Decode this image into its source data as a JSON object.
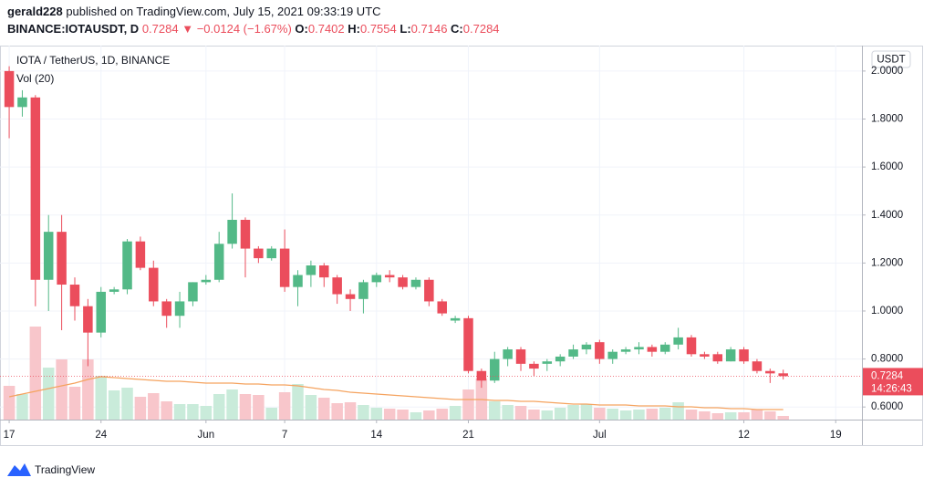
{
  "header": {
    "author": "gerald228",
    "published": "published on TradingView.com, July 15, 2021 09:33:19 UTC",
    "symbol": "BINANCE:IOTAUSDT, D",
    "direction": "▼",
    "change": "−0.0124 (−1.67%)",
    "open_label": "O:",
    "high_label": "H:",
    "low_label": "L:",
    "close_label": "C:"
  },
  "chart_data": {
    "type": "candlestick",
    "title": "IOTA / TetherUS, 1D, BINANCE",
    "currency": "USDT",
    "countdown": "14:26:43",
    "open": [
      2.0,
      1.85,
      1.89,
      1.13,
      1.33,
      1.11,
      1.02,
      0.91,
      1.08,
      1.09,
      1.29,
      1.18,
      1.04,
      0.98,
      1.04,
      1.12,
      1.13,
      1.28,
      1.38,
      1.26,
      1.22,
      1.26,
      1.1,
      1.15,
      1.19,
      1.14,
      1.07,
      1.05,
      1.12,
      1.15,
      1.14,
      1.1,
      1.13,
      1.04,
      0.96,
      0.97,
      0.75,
      0.71,
      0.8,
      0.84,
      0.78,
      0.78,
      0.79,
      0.81,
      0.84,
      0.87,
      0.8,
      0.83,
      0.84,
      0.85,
      0.83,
      0.86,
      0.89,
      0.82,
      0.82,
      0.79,
      0.84,
      0.79,
      0.75,
      0.7402
    ],
    "high": [
      2.02,
      1.92,
      1.9,
      1.4,
      1.4,
      1.14,
      1.05,
      1.1,
      1.1,
      1.3,
      1.31,
      1.21,
      1.05,
      1.08,
      1.12,
      1.15,
      1.33,
      1.49,
      1.39,
      1.27,
      1.27,
      1.34,
      1.17,
      1.21,
      1.2,
      1.15,
      1.09,
      1.13,
      1.16,
      1.17,
      1.15,
      1.14,
      1.14,
      1.05,
      0.98,
      0.98,
      0.76,
      0.83,
      0.85,
      0.85,
      0.79,
      0.8,
      0.82,
      0.86,
      0.87,
      0.88,
      0.84,
      0.85,
      0.87,
      0.86,
      0.87,
      0.93,
      0.9,
      0.83,
      0.83,
      0.85,
      0.85,
      0.8,
      0.76,
      0.7554
    ],
    "low": [
      1.72,
      1.81,
      1.02,
      1.0,
      0.92,
      0.96,
      0.77,
      0.89,
      1.07,
      1.07,
      1.17,
      1.02,
      0.93,
      0.93,
      1.02,
      1.11,
      1.12,
      1.26,
      1.14,
      1.2,
      1.21,
      1.08,
      1.02,
      1.1,
      1.1,
      1.03,
      1.0,
      0.99,
      1.1,
      1.12,
      1.09,
      1.09,
      1.02,
      0.98,
      0.95,
      0.74,
      0.68,
      0.7,
      0.77,
      0.75,
      0.73,
      0.75,
      0.77,
      0.8,
      0.82,
      0.78,
      0.78,
      0.82,
      0.82,
      0.81,
      0.82,
      0.84,
      0.81,
      0.8,
      0.78,
      0.79,
      0.78,
      0.74,
      0.7,
      0.7146
    ],
    "close": [
      1.85,
      1.89,
      1.13,
      1.33,
      1.11,
      1.02,
      0.91,
      1.08,
      1.09,
      1.29,
      1.18,
      1.04,
      0.98,
      1.04,
      1.12,
      1.13,
      1.28,
      1.38,
      1.26,
      1.22,
      1.26,
      1.1,
      1.15,
      1.19,
      1.14,
      1.07,
      1.05,
      1.12,
      1.15,
      1.14,
      1.1,
      1.13,
      1.04,
      0.99,
      0.97,
      0.75,
      0.71,
      0.8,
      0.84,
      0.78,
      0.76,
      0.79,
      0.81,
      0.84,
      0.86,
      0.8,
      0.83,
      0.84,
      0.85,
      0.83,
      0.86,
      0.89,
      0.82,
      0.81,
      0.79,
      0.84,
      0.79,
      0.75,
      0.74,
      0.7284
    ],
    "volume": {
      "name": "Vol (20)",
      "values": [
        37,
        28,
        102,
        57,
        66,
        36,
        66,
        48,
        32,
        35,
        25,
        29,
        20,
        17,
        17,
        15,
        28,
        33,
        28,
        27,
        13,
        30,
        39,
        27,
        24,
        18,
        19,
        16,
        13,
        12,
        11,
        8,
        10,
        12,
        15,
        33,
        45,
        20,
        16,
        15,
        11,
        10,
        13,
        16,
        17,
        13,
        12,
        10,
        11,
        12,
        13,
        19,
        11,
        9,
        7,
        8,
        8,
        11,
        9,
        4
      ],
      "ma": [
        25,
        28,
        31,
        34,
        37,
        40,
        44,
        47,
        46,
        45,
        44,
        43,
        42,
        42,
        41,
        40,
        40,
        40,
        39,
        39,
        38,
        38,
        37,
        35,
        33,
        32,
        30,
        29,
        28,
        27,
        26,
        25,
        24,
        23,
        22,
        22,
        22,
        21,
        21,
        20,
        20,
        19,
        18,
        17,
        17,
        16,
        16,
        16,
        15,
        15,
        15,
        14,
        14,
        13,
        13,
        12,
        12,
        11,
        11,
        11
      ],
      "up_color": "#c9ebda",
      "down_color": "#f8c6cb",
      "ma_color": "#f5a35f"
    },
    "up_color": "#53b987",
    "down_color": "#eb4d5c",
    "ylim": [
      0.5475,
      2.106
    ],
    "yticks": [
      {
        "value": 0.6,
        "label": "0.6000"
      },
      {
        "value": 0.8,
        "label": "0.8000"
      },
      {
        "value": 1.0,
        "label": "1.0000"
      },
      {
        "value": 1.2,
        "label": "1.2000"
      },
      {
        "value": 1.4,
        "label": "1.4000"
      },
      {
        "value": 1.6,
        "label": "1.6000"
      },
      {
        "value": 1.8,
        "label": "1.8000"
      },
      {
        "value": 2.0,
        "label": "2.0000"
      }
    ],
    "xlim": [
      -0.7,
      65
    ],
    "xticks": [
      {
        "value": 0,
        "label": "17"
      },
      {
        "value": 7,
        "label": "24"
      },
      {
        "value": 15,
        "label": "Jun"
      },
      {
        "value": 21,
        "label": "7"
      },
      {
        "value": 28,
        "label": "14"
      },
      {
        "value": 35,
        "label": "21"
      },
      {
        "value": 45,
        "label": "Jul"
      },
      {
        "value": 56,
        "label": "12"
      },
      {
        "value": 63,
        "label": "19"
      }
    ],
    "grid": true
  },
  "footer": {
    "brand": "TradingView"
  }
}
